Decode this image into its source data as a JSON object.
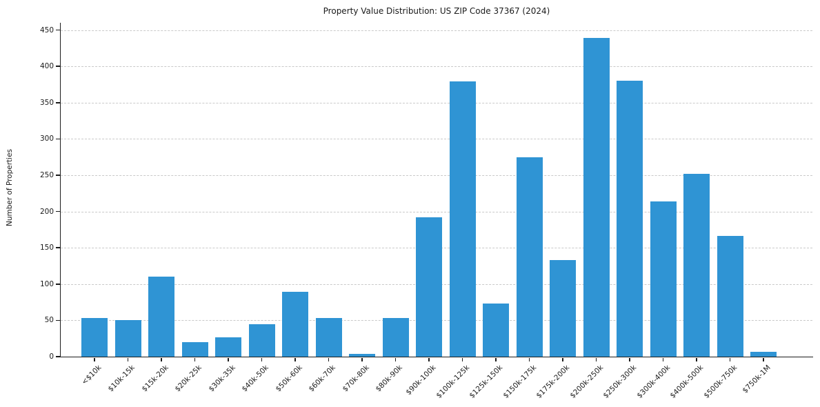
{
  "figure": {
    "background": "#ffffff"
  },
  "chart_data": {
    "type": "bar",
    "title": "Property Value Distribution: US ZIP Code 37367 (2024)",
    "xlabel": "",
    "ylabel": "Number of Properties",
    "categories": [
      "<$10k",
      "$10k-15k",
      "$15k-20k",
      "$20k-25k",
      "$30k-35k",
      "$40k-50k",
      "$50k-60k",
      "$60k-70k",
      "$70k-80k",
      "$80k-90k",
      "$90k-100k",
      "$100k-125k",
      "$125k-150k",
      "$150k-175k",
      "$175k-200k",
      "$200k-250k",
      "$250k-300k",
      "$300k-400k",
      "$400k-500k",
      "$500k-750k",
      "$750k-1M"
    ],
    "values": [
      53,
      50,
      110,
      20,
      27,
      45,
      89,
      53,
      4,
      53,
      192,
      379,
      73,
      275,
      133,
      439,
      380,
      214,
      252,
      166,
      7
    ],
    "ylim": [
      0,
      460
    ],
    "yticks": [
      0,
      50,
      100,
      150,
      200,
      250,
      300,
      350,
      400,
      450
    ],
    "grid": "horizontal-dashed",
    "legend": "none",
    "bar_color": "#2f94d4",
    "grid_color": "#c9c9c9",
    "axis_color": "#1a1a1a"
  }
}
